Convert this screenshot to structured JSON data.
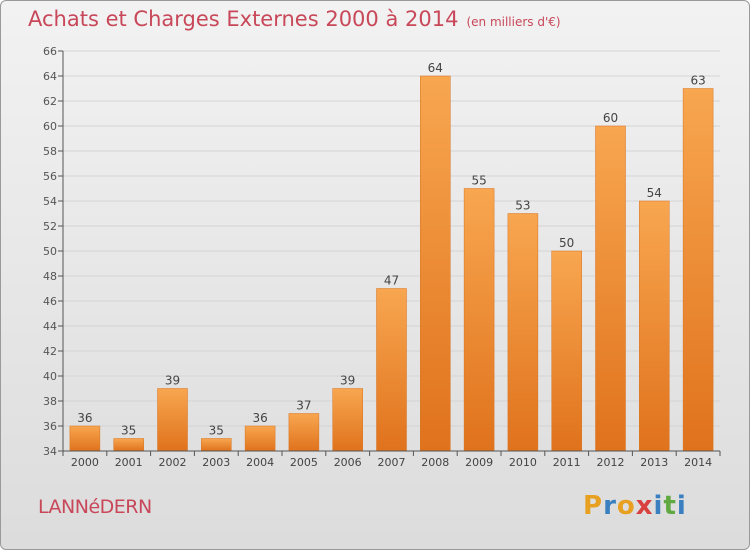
{
  "header": {
    "title": "Achats et Charges Externes 2000 à 2014",
    "unit": "(en milliers d'€)"
  },
  "footer": {
    "commune": "LANNéDERN",
    "logo_text": "Proxiti",
    "logo_colors": [
      "#e8a020",
      "#3a80c0",
      "#e8a020",
      "#d94040",
      "#3a80c0",
      "#60a840",
      "#3a80c0"
    ]
  },
  "chart_data": {
    "type": "bar",
    "title": "Achats et Charges Externes 2000 à 2014",
    "xlabel": "",
    "ylabel": "",
    "categories": [
      "2000",
      "2001",
      "2002",
      "2003",
      "2004",
      "2005",
      "2006",
      "2007",
      "2008",
      "2009",
      "2010",
      "2011",
      "2012",
      "2013",
      "2014"
    ],
    "values": [
      36,
      35,
      39,
      35,
      36,
      37,
      39,
      47,
      64,
      55,
      53,
      50,
      60,
      54,
      63
    ],
    "ylim": [
      34,
      66
    ],
    "yticks": [
      34,
      36,
      38,
      40,
      42,
      44,
      46,
      48,
      50,
      52,
      54,
      56,
      58,
      60,
      62,
      64,
      66
    ],
    "grid": true,
    "data_labels": true,
    "colors": {
      "bar_top": "#f8a650",
      "bar_bottom": "#e0721c",
      "axis": "#555555"
    }
  }
}
